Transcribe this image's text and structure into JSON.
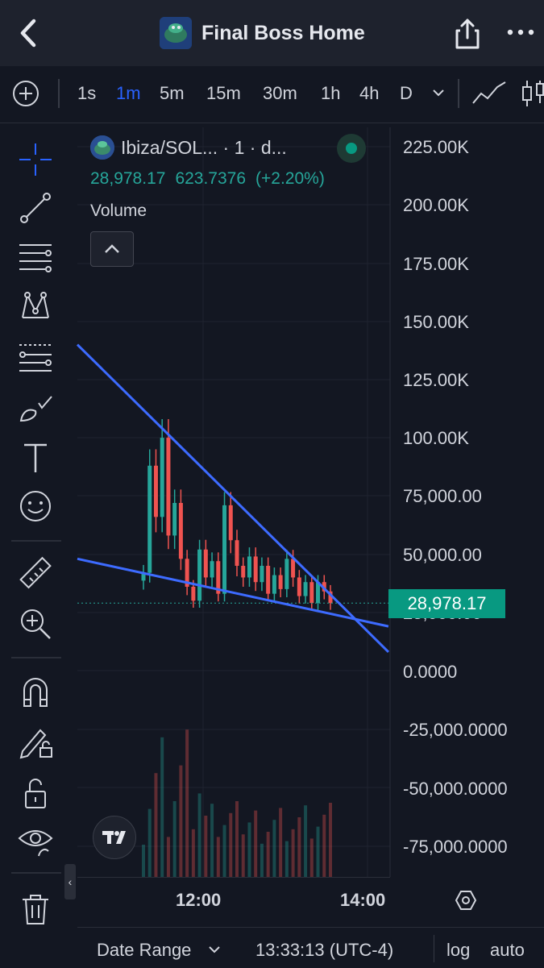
{
  "header": {
    "back_icon": "chevron-left-icon",
    "title": "Final Boss Home",
    "share_icon": "share-icon",
    "more_icon": "more-horizontal-icon"
  },
  "timeframes": {
    "items": [
      "1s",
      "1m",
      "5m",
      "15m",
      "30m",
      "1h",
      "4h",
      "D"
    ],
    "active": "1m"
  },
  "legend": {
    "symbol": "Ibiza/SOL... · 1 · d...",
    "price": "28,978.17",
    "change": "623.7376",
    "change_pct": "(+2.20%)",
    "volume_label": "Volume"
  },
  "price_axis": {
    "labels": [
      "225.00K",
      "200.00K",
      "175.00K",
      "150.00K",
      "125.00K",
      "100.00K",
      "75,000.00",
      "50,000.00",
      "25,000.00",
      "0.0000",
      "-25,000.0000",
      "-50,000.0000",
      "-75,000.0000"
    ],
    "last_price": "28,978.17"
  },
  "time_axis": {
    "labels": [
      "12:00",
      "14:00"
    ]
  },
  "bottom": {
    "date_range": "Date Range",
    "clock": "13:33:13 (UTC-4)",
    "log": "log",
    "auto": "auto"
  },
  "colors": {
    "up": "#26a69a",
    "down": "#ef5350",
    "trendline": "#3d6bff",
    "active_tf": "#2962ff",
    "last_price_bg": "#089981"
  },
  "chart_data": {
    "type": "candlestick",
    "xlabel": "",
    "ylabel": "",
    "ylim": [
      -85000,
      230000
    ],
    "x_ticks": [
      "12:00",
      "14:00"
    ],
    "last_price": 28978.17,
    "series": [
      {
        "values": [
          42000,
          88000,
          66000,
          100000,
          58000,
          72000,
          48000,
          36000,
          30000,
          52000,
          40000,
          47000,
          33000,
          71000,
          56000,
          45000,
          40000,
          49000,
          38000,
          45000,
          33000,
          41000,
          35000,
          48000,
          40000,
          32000,
          38000,
          29000,
          38000,
          34000,
          29000
        ]
      }
    ]
  }
}
